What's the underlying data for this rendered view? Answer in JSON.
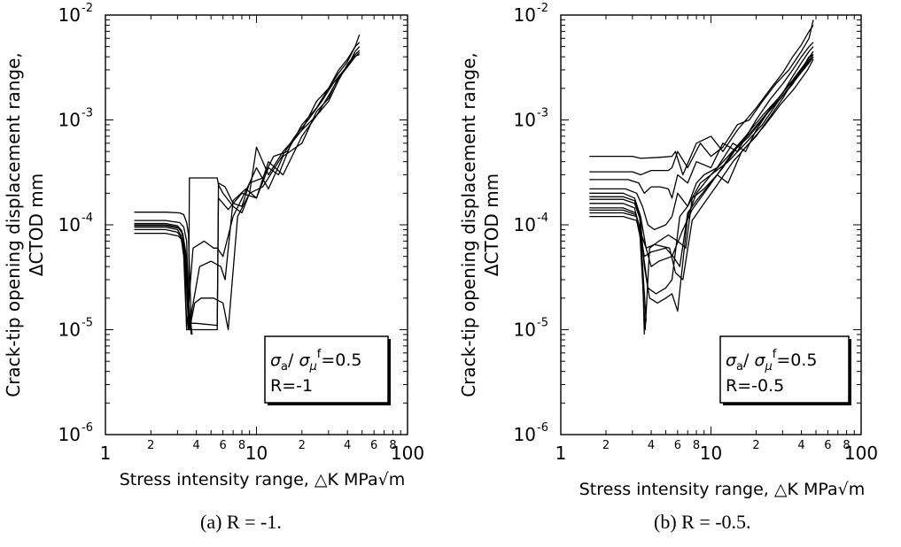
{
  "chart_data": [
    {
      "type": "line",
      "panel": "(a)",
      "caption": "(a) R = -1.",
      "ylabel_line1": "Crack-tip opening displacement range,",
      "ylabel_line2": "ΔCTOD mm",
      "xlabel": "Stress intensity range, △K MPa√m",
      "xscale": "log",
      "yscale": "log",
      "xlim": [
        1,
        100
      ],
      "ylim": [
        1e-06,
        0.01
      ],
      "x_major_ticks": [
        {
          "value": 1,
          "label": "1"
        },
        {
          "value": 10,
          "label": "10"
        },
        {
          "value": 100,
          "label": "100"
        }
      ],
      "x_minor_labels": [
        {
          "value": 2,
          "label": "2"
        },
        {
          "value": 4,
          "label": "4"
        },
        {
          "value": 6,
          "label": "6"
        },
        {
          "value": 8,
          "label": "8"
        },
        {
          "value": 20,
          "label": "2"
        },
        {
          "value": 40,
          "label": "4"
        },
        {
          "value": 60,
          "label": "6"
        },
        {
          "value": 80,
          "label": "8"
        }
      ],
      "y_major_ticks": [
        {
          "value": 1e-06,
          "label_base": "10",
          "label_exp": "-6"
        },
        {
          "value": 1e-05,
          "label_base": "10",
          "label_exp": "-5"
        },
        {
          "value": 0.0001,
          "label_base": "10",
          "label_exp": "-4"
        },
        {
          "value": 0.001,
          "label_base": "10",
          "label_exp": "-3"
        },
        {
          "value": 0.01,
          "label_base": "10",
          "label_exp": "-2"
        }
      ],
      "legend": {
        "placement": "bottom-right",
        "sigma_ratio": "=0.5",
        "r_text": "R=-1"
      },
      "grid": false,
      "series": [
        {
          "x": [
            1.55,
            2.5,
            3.1,
            3.3,
            3.45,
            3.55,
            3.6,
            3.7,
            4.0,
            5.5,
            5.6,
            6.2,
            7,
            8,
            9,
            10,
            12,
            15,
            20,
            25,
            30,
            35,
            40,
            45,
            48
          ],
          "y": [
            0.000132,
            0.000132,
            0.00013,
            0.000125,
            0.000105,
            8e-05,
            4e-05,
            1.15e-05,
            1.15e-05,
            1.1e-05,
            0.00025,
            0.00023,
            0.00016,
            0.00015,
            0.00025,
            0.00035,
            0.00022,
            0.00045,
            0.0006,
            0.0012,
            0.0016,
            0.0026,
            0.0032,
            0.0045,
            0.005
          ]
        },
        {
          "x": [
            1.55,
            2.5,
            3.1,
            3.3,
            3.45,
            3.5,
            3.55,
            3.6,
            3.7,
            5.5,
            5.6,
            6,
            7,
            8,
            9,
            10,
            12,
            15,
            20,
            25,
            30,
            35,
            40,
            45,
            48
          ],
          "y": [
            0.00011,
            0.00011,
            0.000105,
            9.5e-05,
            7e-05,
            3e-05,
            1e-05,
            0.00028,
            0.00028,
            0.00028,
            0.00024,
            0.0002,
            0.00015,
            0.00013,
            0.0002,
            0.00055,
            0.0003,
            0.0005,
            0.0008,
            0.0015,
            0.002,
            0.003,
            0.0038,
            0.005,
            0.0065
          ]
        },
        {
          "x": [
            1.55,
            2.5,
            3.0,
            3.2,
            3.35,
            3.45,
            4.0,
            5.0,
            5.5,
            5.6,
            6.5,
            8,
            10,
            12,
            15,
            20,
            25,
            30,
            35,
            40,
            45,
            48
          ],
          "y": [
            0.0001,
            0.0001,
            9.5e-05,
            8.5e-05,
            6e-05,
            1e-05,
            1e-05,
            1e-05,
            1e-05,
            0.00018,
            0.00014,
            0.0002,
            0.00018,
            0.0004,
            0.0003,
            0.0007,
            0.0011,
            0.0015,
            0.0024,
            0.0034,
            0.0042,
            0.0046
          ]
        },
        {
          "x": [
            1.55,
            2.5,
            3.0,
            3.15,
            3.3,
            3.45,
            3.8,
            4.5,
            5.2,
            5.5,
            6,
            7,
            9,
            11,
            13,
            16,
            20,
            25,
            30,
            35,
            40,
            45,
            48
          ],
          "y": [
            9.5e-05,
            9.5e-05,
            9e-05,
            8e-05,
            5e-05,
            1e-05,
            6e-05,
            7e-05,
            6e-05,
            6e-05,
            5e-05,
            0.00012,
            0.00025,
            0.00028,
            0.00045,
            0.0005,
            0.0009,
            0.0013,
            0.002,
            0.0028,
            0.0036,
            0.005,
            0.0055
          ]
        },
        {
          "x": [
            1.55,
            2.5,
            3.0,
            3.2,
            3.4,
            3.55,
            4.2,
            5.0,
            5.8,
            6.2,
            7,
            8.5,
            10,
            12,
            14,
            17,
            20,
            25,
            30,
            35,
            40,
            45,
            48
          ],
          "y": [
            9e-05,
            9e-05,
            8.5e-05,
            7.5e-05,
            4.5e-05,
            1e-05,
            4e-05,
            4.5e-05,
            4e-05,
            3e-05,
            0.00017,
            0.00022,
            0.00018,
            0.00035,
            0.0003,
            0.0006,
            0.0008,
            0.0011,
            0.0017,
            0.0025,
            0.0032,
            0.004,
            0.0044
          ]
        },
        {
          "x": [
            1.55,
            2.5,
            3.05,
            3.25,
            3.4,
            3.6,
            3.9,
            4.3,
            5.2,
            6,
            6.5,
            7.5,
            9,
            11,
            14,
            18,
            22,
            27,
            32,
            38,
            44,
            48
          ],
          "y": [
            8.3e-05,
            8.3e-05,
            7.8e-05,
            7e-05,
            4e-05,
            1e-05,
            1.8e-05,
            2e-05,
            2e-05,
            1.8e-05,
            1e-05,
            0.00012,
            0.0002,
            0.00023,
            0.0004,
            0.0007,
            0.001,
            0.0015,
            0.0022,
            0.003,
            0.004,
            0.0042
          ]
        },
        {
          "x": [
            1.55,
            2.5,
            3.0,
            3.2,
            3.35,
            3.5,
            3.7
          ],
          "y": [
            0.000103,
            0.000103,
            9.8e-05,
            8.8e-05,
            6e-05,
            2e-05,
            9e-06
          ]
        },
        {
          "x": [
            1.55,
            2.5,
            3.05,
            3.25,
            3.4,
            3.55,
            3.75
          ],
          "y": [
            9.8e-05,
            9.8e-05,
            9.3e-05,
            8.3e-05,
            5.5e-05,
            1.8e-05,
            9e-06
          ]
        }
      ]
    },
    {
      "type": "line",
      "panel": "(b)",
      "caption": "(b) R = -0.5.",
      "ylabel_line1": "Crack-tip opening displacement range,",
      "ylabel_line2": "ΔCTOD mm",
      "xlabel": "Stress intensity range, △K MPa√m",
      "xscale": "log",
      "yscale": "log",
      "xlim": [
        1,
        100
      ],
      "ylim": [
        1e-06,
        0.01
      ],
      "x_major_ticks": [
        {
          "value": 1,
          "label": "1"
        },
        {
          "value": 10,
          "label": "10"
        },
        {
          "value": 100,
          "label": "100"
        }
      ],
      "x_minor_labels": [
        {
          "value": 2,
          "label": "2"
        },
        {
          "value": 4,
          "label": "4"
        },
        {
          "value": 6,
          "label": "6"
        },
        {
          "value": 8,
          "label": "8"
        },
        {
          "value": 20,
          "label": "2"
        },
        {
          "value": 40,
          "label": "4"
        },
        {
          "value": 60,
          "label": "6"
        },
        {
          "value": 80,
          "label": "8"
        }
      ],
      "y_major_ticks": [
        {
          "value": 1e-06,
          "label_base": "10",
          "label_exp": "-6"
        },
        {
          "value": 1e-05,
          "label_base": "10",
          "label_exp": "-5"
        },
        {
          "value": 0.0001,
          "label_base": "10",
          "label_exp": "-4"
        },
        {
          "value": 0.001,
          "label_base": "10",
          "label_exp": "-3"
        },
        {
          "value": 0.01,
          "label_base": "10",
          "label_exp": "-2"
        }
      ],
      "legend": {
        "placement": "bottom-right",
        "sigma_ratio": "=0.5",
        "r_text": "R=-0.5"
      },
      "grid": false,
      "series": [
        {
          "x": [
            1.55,
            3.0,
            3.4,
            4.5,
            5.5,
            5.8,
            6.5,
            8,
            10,
            12,
            15,
            20,
            25,
            30,
            35,
            40,
            45,
            48
          ],
          "y": [
            0.00045,
            0.00045,
            0.00043,
            0.00044,
            0.00045,
            0.0005,
            0.0003,
            0.0006,
            0.0007,
            0.0005,
            0.0008,
            0.0013,
            0.002,
            0.0028,
            0.004,
            0.0052,
            0.007,
            0.008
          ]
        },
        {
          "x": [
            1.55,
            3.0,
            3.4,
            4.0,
            5.2,
            5.5,
            6,
            7,
            8.5,
            10,
            12,
            15,
            18,
            22,
            27,
            33,
            40,
            45,
            48
          ],
          "y": [
            0.00032,
            0.00032,
            0.0003,
            0.00033,
            0.00033,
            0.00035,
            0.0005,
            0.00035,
            0.0006,
            0.00045,
            0.00055,
            0.0009,
            0.001,
            0.0015,
            0.0022,
            0.003,
            0.0045,
            0.006,
            0.009
          ]
        },
        {
          "x": [
            1.55,
            2.8,
            3.3,
            3.6,
            4.0,
            4.6,
            5.2,
            5.5,
            6,
            7,
            8,
            10,
            12,
            15,
            20,
            25,
            30,
            35,
            40,
            45,
            48
          ],
          "y": [
            0.00027,
            0.00027,
            0.00025,
            0.0002,
            0.00023,
            0.00023,
            0.00022,
            0.00018,
            0.0003,
            0.00025,
            0.0004,
            0.00035,
            0.0006,
            0.0005,
            0.001,
            0.0016,
            0.0022,
            0.003,
            0.004,
            0.005,
            0.0055
          ]
        },
        {
          "x": [
            1.55,
            2.7,
            3.2,
            3.5,
            3.8,
            4.2,
            5.0,
            5.5,
            6,
            7,
            8,
            9,
            11,
            14,
            17,
            20,
            25,
            30,
            35,
            40,
            45,
            48
          ],
          "y": [
            0.00022,
            0.00022,
            0.0002,
            0.00015,
            0.0001,
            9e-05,
            0.0001,
            0.00012,
            0.0002,
            0.00015,
            0.00025,
            0.0003,
            0.00035,
            0.0006,
            0.0005,
            0.0008,
            0.0013,
            0.0018,
            0.0026,
            0.0035,
            0.0045,
            0.005
          ]
        },
        {
          "x": [
            1.55,
            2.6,
            3.1,
            3.4,
            3.7,
            4.0,
            4.5,
            5.5,
            6.5,
            7.5,
            9,
            11,
            13,
            16,
            20,
            25,
            30,
            35,
            40,
            45,
            48
          ],
          "y": [
            0.0002,
            0.0002,
            0.00018,
            0.00012,
            6e-05,
            4e-05,
            4.5e-05,
            5e-05,
            9e-05,
            0.00014,
            0.0002,
            0.0003,
            0.00025,
            0.0005,
            0.0007,
            0.0011,
            0.0016,
            0.0023,
            0.003,
            0.004,
            0.0042
          ]
        },
        {
          "x": [
            1.55,
            2.6,
            3.1,
            3.4,
            3.6,
            3.9,
            4.4,
            5.0,
            5.5,
            6.0,
            7,
            8,
            10,
            13,
            17,
            22,
            28,
            35,
            42,
            48
          ],
          "y": [
            0.000175,
            0.000175,
            0.00016,
            0.00011,
            4e-05,
            2e-05,
            1.8e-05,
            2e-05,
            2.2e-05,
            1.5e-05,
            0.00012,
            0.0002,
            0.0003,
            0.0004,
            0.0006,
            0.0009,
            0.0015,
            0.0022,
            0.0032,
            0.004
          ]
        },
        {
          "x": [
            1.55,
            2.6,
            3.1,
            3.35,
            3.5,
            3.65,
            3.9,
            4.5,
            5.2,
            6,
            6.8,
            7.5,
            9,
            11,
            14,
            18,
            23,
            30,
            38,
            45,
            48
          ],
          "y": [
            0.00016,
            0.00016,
            0.000145,
            9e-05,
            3e-05,
            1e-05,
            6e-05,
            7e-05,
            8e-05,
            7e-05,
            6e-05,
            0.00018,
            0.00022,
            0.0003,
            0.0005,
            0.0007,
            0.0011,
            0.0017,
            0.0026,
            0.0035,
            0.004
          ]
        },
        {
          "x": [
            1.55,
            2.6,
            3.15,
            3.4,
            3.6,
            4.0,
            5.0,
            5.6,
            6.2,
            7,
            8,
            9.5,
            12,
            15,
            19,
            24,
            30,
            37,
            44,
            48
          ],
          "y": [
            0.000145,
            0.000145,
            0.00013,
            8e-05,
            5e-05,
            5.5e-05,
            6e-05,
            5e-05,
            4e-05,
            0.00013,
            0.00017,
            0.00023,
            0.00035,
            0.00055,
            0.0008,
            0.0012,
            0.0018,
            0.0026,
            0.0036,
            0.0042
          ]
        },
        {
          "x": [
            1.55,
            2.6,
            3.2,
            3.45,
            3.7,
            4.2,
            5.3,
            5.8,
            6.5,
            7.5,
            9,
            11,
            14,
            18,
            23,
            29,
            36,
            44,
            48
          ],
          "y": [
            0.00013,
            0.00013,
            0.00012,
            8e-05,
            6e-05,
            6.5e-05,
            6e-05,
            3.5e-05,
            3e-05,
            0.00011,
            0.00016,
            0.00024,
            0.0004,
            0.0006,
            0.0009,
            0.0014,
            0.002,
            0.003,
            0.0038
          ]
        },
        {
          "x": [
            1.55,
            2.6,
            3.2,
            3.5,
            3.8,
            4.3,
            5.0,
            5.5,
            6.2,
            7.0,
            8.5,
            10,
            13,
            17,
            22,
            28,
            35,
            42,
            48
          ],
          "y": [
            0.00012,
            0.00012,
            0.00011,
            6e-05,
            2.5e-05,
            2.2e-05,
            2.5e-05,
            3e-05,
            0.00012,
            0.00015,
            0.00025,
            0.0003,
            0.00045,
            0.0007,
            0.0011,
            0.0016,
            0.0024,
            0.0034,
            0.0045
          ]
        },
        {
          "x": [
            1.55,
            2.6,
            3.1,
            3.35,
            3.5,
            3.6
          ],
          "y": [
            0.000185,
            0.000185,
            0.00017,
            0.00012,
            4e-05,
            9e-06
          ]
        },
        {
          "x": [
            1.55,
            2.6,
            3.15,
            3.4,
            3.55,
            3.7
          ],
          "y": [
            0.000138,
            0.000138,
            0.000125,
            8.5e-05,
            3e-05,
            1.2e-05
          ]
        }
      ]
    }
  ]
}
